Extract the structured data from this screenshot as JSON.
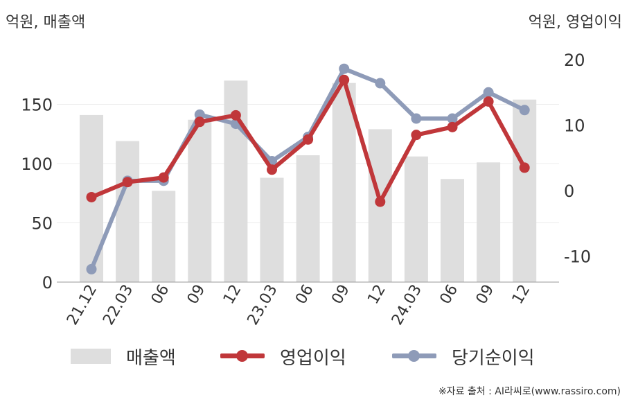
{
  "left_unit": "억원, 매출액",
  "right_unit": "억원, 영업이익",
  "source": "※자료 출처 : AI라씨로(www.rassiro.com)",
  "chart_data": {
    "type": "bar",
    "categories": [
      "21.12",
      "22.03",
      "06",
      "09",
      "12",
      "23.03",
      "06",
      "09",
      "12",
      "24.03",
      "06",
      "09",
      "12"
    ],
    "left_axis": {
      "ylim": [
        0,
        175
      ],
      "ticks": [
        0,
        50,
        100,
        150
      ]
    },
    "right_axis": {
      "ylim": [
        -14,
        20
      ],
      "ticks": [
        -10,
        0,
        10,
        20
      ]
    },
    "grid": true,
    "legend_position": "bottom",
    "series": [
      {
        "name": "매출액",
        "type": "bar",
        "axis": "left",
        "color": "#dedede",
        "values": [
          141,
          119,
          77,
          137,
          170,
          88,
          107,
          168,
          129,
          106,
          87,
          101,
          154
        ]
      },
      {
        "name": "영업이익",
        "type": "line",
        "axis": "right",
        "color": "#c0373a",
        "values": [
          -1,
          1.3,
          2,
          10.5,
          11.5,
          3.2,
          7.8,
          16.9,
          -1.7,
          8.5,
          9.7,
          13.6,
          3.5
        ]
      },
      {
        "name": "당기순이익",
        "type": "line",
        "axis": "right",
        "color": "#8e9bb8",
        "values": [
          -12,
          1.5,
          1.5,
          11.6,
          10.2,
          4.5,
          8.2,
          18.6,
          16.4,
          11,
          11,
          15,
          12.3
        ]
      }
    ]
  }
}
